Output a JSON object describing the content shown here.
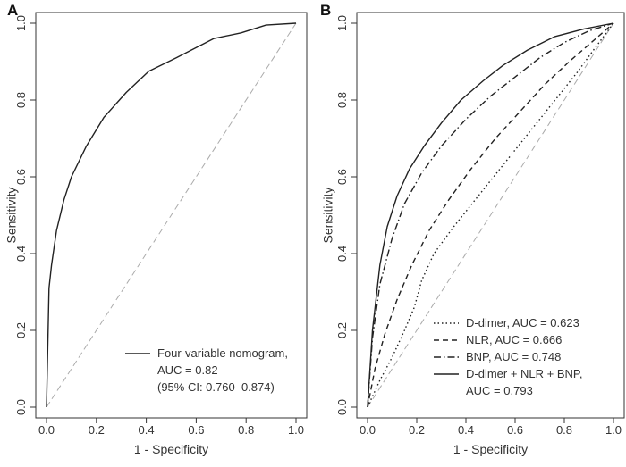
{
  "figure": {
    "panels": [
      {
        "letter": "A",
        "xlabel": "1 - Specificity",
        "ylabel": "Sensitivity",
        "xticks": [
          "0.0",
          "0.2",
          "0.4",
          "0.6",
          "0.8",
          "1.0"
        ],
        "yticks": [
          "0.0",
          "0.2",
          "0.4",
          "0.6",
          "0.8",
          "1.0"
        ],
        "legend": [
          {
            "label": "Four-variable nomogram,",
            "extra": [
              "AUC = 0.82",
              "(95% CI: 0.760–0.874)"
            ],
            "style": "solid"
          }
        ]
      },
      {
        "letter": "B",
        "xlabel": "1 - Specificity",
        "ylabel": "Sensitivity",
        "xticks": [
          "0.0",
          "0.2",
          "0.4",
          "0.6",
          "0.8",
          "1.0"
        ],
        "yticks": [
          "0.0",
          "0.2",
          "0.4",
          "0.6",
          "0.8",
          "1.0"
        ],
        "legend": [
          {
            "label": "D-dimer, AUC = 0.623",
            "extra": [],
            "style": "dotted"
          },
          {
            "label": "NLR, AUC = 0.666",
            "extra": [],
            "style": "dashed"
          },
          {
            "label": "BNP, AUC = 0.748",
            "extra": [],
            "style": "dashdot"
          },
          {
            "label": "D-dimer + NLR + BNP,",
            "extra": [
              "AUC = 0.793"
            ],
            "style": "solid"
          }
        ]
      }
    ]
  },
  "chart_data": [
    {
      "type": "line",
      "xlabel": "1 - Specificity",
      "ylabel": "Sensitivity",
      "xlim": [
        0,
        1
      ],
      "ylim": [
        0,
        1
      ],
      "grid": false,
      "legend_position": "bottom-right",
      "reference_line": {
        "x": [
          0,
          1
        ],
        "y": [
          0,
          1
        ],
        "color": "#aaaaaa",
        "style": "dashed"
      },
      "series": [
        {
          "name": "Four-variable nomogram, AUC = 0.82 (95% CI: 0.760–0.874)",
          "style": "solid",
          "color": "#222222",
          "x": [
            0,
            0.01,
            0.02,
            0.04,
            0.07,
            0.1,
            0.16,
            0.23,
            0.32,
            0.41,
            0.52,
            0.67,
            0.78,
            0.88,
            1.0
          ],
          "y": [
            0,
            0.31,
            0.37,
            0.46,
            0.54,
            0.6,
            0.68,
            0.755,
            0.82,
            0.875,
            0.91,
            0.96,
            0.975,
            0.995,
            1.0
          ]
        }
      ]
    },
    {
      "type": "line",
      "xlabel": "1 - Specificity",
      "ylabel": "Sensitivity",
      "xlim": [
        0,
        1
      ],
      "ylim": [
        0,
        1
      ],
      "grid": false,
      "legend_position": "bottom-right",
      "reference_line": {
        "x": [
          0,
          1
        ],
        "y": [
          0,
          1
        ],
        "color": "#aaaaaa",
        "style": "dashed"
      },
      "series": [
        {
          "name": "D-dimer, AUC = 0.623",
          "style": "dotted",
          "color": "#222222",
          "x": [
            0,
            0.05,
            0.1,
            0.15,
            0.19,
            0.22,
            0.27,
            0.35,
            0.45,
            0.55,
            0.65,
            0.75,
            0.85,
            0.93,
            1.0
          ],
          "y": [
            0,
            0.07,
            0.13,
            0.2,
            0.26,
            0.33,
            0.4,
            0.47,
            0.55,
            0.63,
            0.71,
            0.79,
            0.87,
            0.94,
            1.0
          ]
        },
        {
          "name": "NLR, AUC = 0.666",
          "style": "dashed",
          "color": "#222222",
          "x": [
            0,
            0.03,
            0.07,
            0.12,
            0.18,
            0.25,
            0.33,
            0.42,
            0.52,
            0.62,
            0.72,
            0.82,
            0.91,
            1.0
          ],
          "y": [
            0,
            0.1,
            0.19,
            0.28,
            0.37,
            0.46,
            0.54,
            0.62,
            0.7,
            0.77,
            0.84,
            0.9,
            0.95,
            1.0
          ]
        },
        {
          "name": "BNP, AUC = 0.748",
          "style": "dashdot",
          "color": "#222222",
          "x": [
            0,
            0.02,
            0.05,
            0.1,
            0.15,
            0.22,
            0.3,
            0.4,
            0.5,
            0.6,
            0.7,
            0.8,
            0.9,
            1.0
          ],
          "y": [
            0,
            0.18,
            0.32,
            0.44,
            0.53,
            0.61,
            0.68,
            0.75,
            0.81,
            0.86,
            0.91,
            0.95,
            0.98,
            1.0
          ]
        },
        {
          "name": "D-dimer + NLR + BNP, AUC = 0.793",
          "style": "solid",
          "color": "#222222",
          "x": [
            0,
            0.02,
            0.05,
            0.08,
            0.12,
            0.17,
            0.23,
            0.3,
            0.38,
            0.47,
            0.55,
            0.65,
            0.76,
            0.88,
            1.0
          ],
          "y": [
            0,
            0.2,
            0.37,
            0.47,
            0.55,
            0.62,
            0.68,
            0.74,
            0.8,
            0.85,
            0.89,
            0.93,
            0.965,
            0.985,
            1.0
          ]
        }
      ]
    }
  ]
}
